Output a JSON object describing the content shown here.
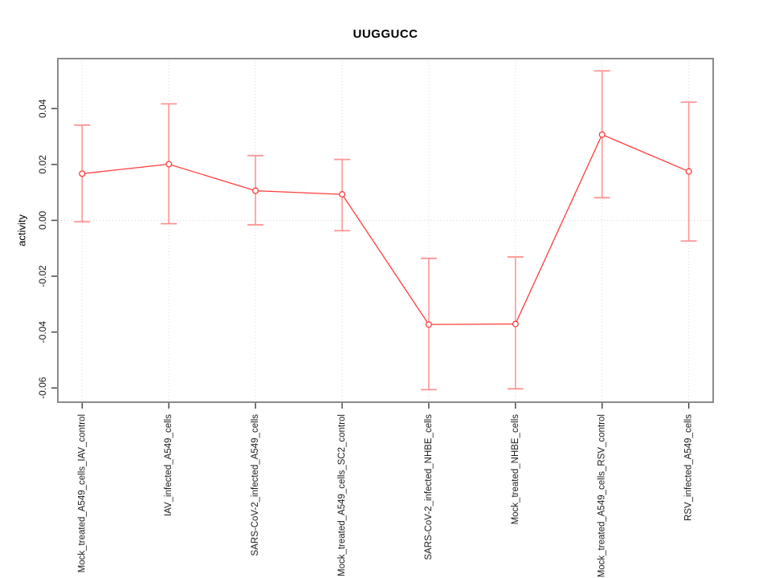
{
  "chart_data": {
    "type": "line",
    "title": "UUGGUCC",
    "xlabel": "",
    "ylabel": "activity",
    "legend": "none",
    "grid": {
      "vertical_dotted": true,
      "horizontal_zero_line_dotted": true
    },
    "categories": [
      "Mock_treated_A549_cells_IAV_control",
      "IAV_infected_A549_cells",
      "SARS-CoV-2_infected_A549_cells",
      "Mock_treated_A549_cells_SC2_control",
      "SARS-CoV-2_infected_NHBE_cells",
      "Mock_treated_NHBE_cells",
      "Mock_treated_A549_cells_RSV_control",
      "RSV_infected_A549_cells"
    ],
    "series": [
      {
        "name": "activity",
        "marker": "open-circle",
        "values": [
          0.0167,
          0.0201,
          0.0106,
          0.0093,
          -0.0373,
          -0.0371,
          0.0307,
          0.0175
        ],
        "error_high": [
          0.0341,
          0.0417,
          0.0232,
          0.0218,
          -0.0136,
          -0.0131,
          0.0535,
          0.0423
        ],
        "error_low": [
          -0.0005,
          -0.0012,
          -0.0016,
          -0.0037,
          -0.0606,
          -0.0603,
          0.0081,
          -0.0074
        ]
      }
    ],
    "y_ticks": [
      {
        "v": -0.06,
        "label": "-0.06"
      },
      {
        "v": -0.04,
        "label": "-0.04"
      },
      {
        "v": -0.02,
        "label": "-0.02"
      },
      {
        "v": 0.0,
        "label": "0.00"
      },
      {
        "v": 0.02,
        "label": "0.02"
      },
      {
        "v": 0.04,
        "label": "0.04"
      }
    ],
    "ylim": [
      -0.0651,
      0.0579
    ],
    "colors": {
      "line": "#ff3b3b",
      "point_stroke": "#ff3b3b",
      "point_fill": "#ffffff",
      "error_bar": "#ff9595",
      "grid": "#dadada",
      "zero_line": "#d6d6d6",
      "frame": "#8a8a8a",
      "tick": "#3d3d3d",
      "text": "#1a1a1a"
    }
  }
}
